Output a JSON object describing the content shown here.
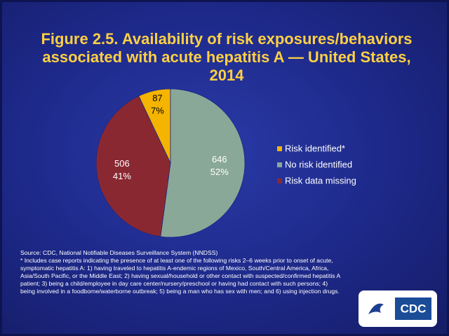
{
  "chart_data": {
    "type": "pie",
    "title": "Figure 2.5. Availability of risk exposures/behaviors associated with acute hepatitis A — United States, 2014",
    "categories": [
      "Risk identified*",
      "No risk identified",
      "Risk data missing"
    ],
    "values": [
      87,
      646,
      506
    ],
    "percent_labels": [
      "7%",
      "52%",
      "41%"
    ],
    "colors": [
      "#f4b400",
      "#8aa898",
      "#8a2832"
    ],
    "legend": "right",
    "source": "Source: CDC, National Notifiable Diseases Surveillance System (NNDSS)",
    "footnote": "* Includes case reports indicating the presence of at least one of the following risks 2–6 weeks prior to onset of acute, symptomatic hepatitis A: 1) having traveled to hepatitis A-endemic regions of Mexico, South/Central America, Africa, Asia/South Pacific, or the Middle East; 2) having sexual/household or other contact with suspected/confirmed hepatitis A patient; 3) being a child/employee in day care center/nursery/preschool or having had contact with such persons; 4) being involved in a foodborne/waterborne outbreak; 5) being a man who has sex with men; and 6) using injection drugs.",
    "logo_text": "CDC"
  }
}
